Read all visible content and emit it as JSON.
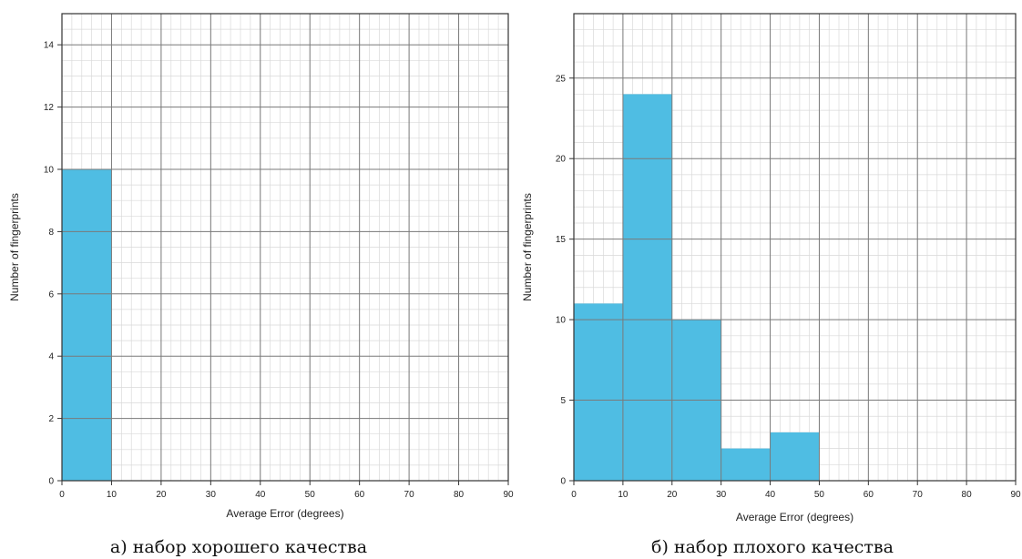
{
  "chart_data": [
    {
      "type": "bar",
      "histogram": true,
      "bin_edges": [
        0,
        10,
        20,
        30,
        40,
        50,
        60,
        70,
        80,
        90
      ],
      "values": [
        10,
        0,
        0,
        0,
        0,
        0,
        0,
        0,
        0
      ],
      "xlabel": "Average Error (degrees)",
      "ylabel": "Number of fingerprints",
      "xlim": [
        0,
        90
      ],
      "ylim": [
        0,
        15
      ],
      "xticks": [
        0,
        10,
        20,
        30,
        40,
        50,
        60,
        70,
        80,
        90
      ],
      "yticks": [
        0,
        2,
        4,
        6,
        8,
        10,
        12,
        14
      ],
      "y_minor_step": 0.5,
      "x_minor_step": 2,
      "grid": true,
      "caption": "а) набор хорошего качества",
      "color": "#4fbde3"
    },
    {
      "type": "bar",
      "histogram": true,
      "bin_edges": [
        0,
        10,
        20,
        30,
        40,
        50,
        60,
        70,
        80,
        90
      ],
      "values": [
        11,
        24,
        10,
        2,
        3,
        0,
        0,
        0,
        0
      ],
      "xlabel": "Average Error (degrees)",
      "ylabel": "Number of fingerprints",
      "xlim": [
        0,
        90
      ],
      "ylim": [
        0,
        29
      ],
      "xticks": [
        0,
        10,
        20,
        30,
        40,
        50,
        60,
        70,
        80,
        90
      ],
      "yticks": [
        0,
        5,
        10,
        15,
        20,
        25
      ],
      "y_minor_step": 1,
      "x_minor_step": 2,
      "grid": true,
      "caption": "б) набор плохого качества",
      "color": "#4fbde3"
    }
  ]
}
